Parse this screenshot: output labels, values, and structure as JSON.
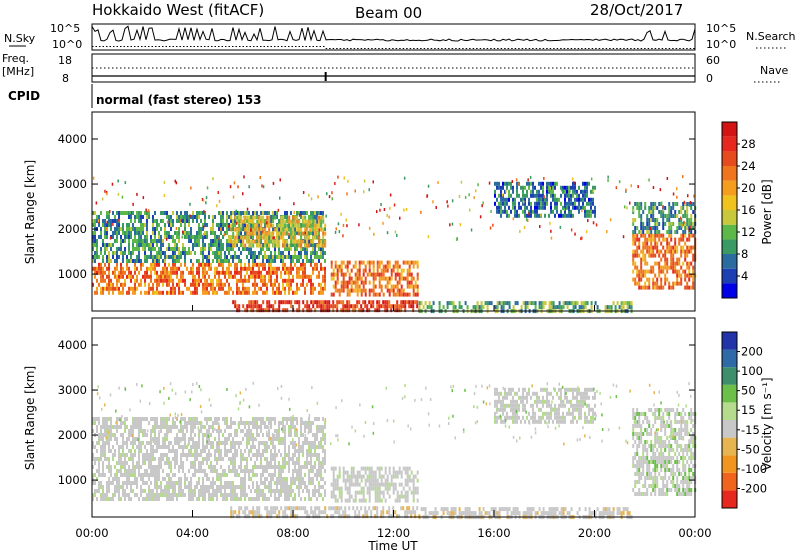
{
  "header": {
    "station": "Hokkaido West (fitACF)",
    "beam": "Beam 00",
    "date": "28/Oct/2017"
  },
  "status_panels": {
    "nsky_label": "N.Sky",
    "nsearch_label": "N.Search",
    "noise_ticks": [
      "10^5",
      "10^0"
    ],
    "freq_label": "Freq.",
    "freq_unit": "[MHz]",
    "freq_ticks": [
      "18",
      "8"
    ],
    "nave_label": "Nave",
    "nave_ticks": [
      "60",
      "0"
    ],
    "cpid_label": "CPID",
    "cpid_text": "normal (fast stereo) 153"
  },
  "colorbars": {
    "power": {
      "label": "Power [dB]",
      "ticks": [
        "4",
        "8",
        "12",
        "16",
        "20",
        "24",
        "28"
      ],
      "colors": [
        "#0000e6",
        "#1c3fb4",
        "#2b6ca0",
        "#3a9a64",
        "#5db84a",
        "#c8c83c",
        "#f0c21e",
        "#f59d1e",
        "#f0761e",
        "#e64b1e",
        "#e6281e",
        "#d21414"
      ]
    },
    "velocity": {
      "label": "Velocity [m s⁻¹]",
      "ticks": [
        "200",
        "100",
        "50",
        "15",
        "-15",
        "-50",
        "-100",
        "-200"
      ],
      "colors": [
        "#2333a8",
        "#2f6aa8",
        "#3c8f6a",
        "#6cc04a",
        "#b4dc8c",
        "#c8c8c8",
        "#e6b450",
        "#f0961e",
        "#f0641e",
        "#e6281e"
      ]
    }
  },
  "axes": {
    "ylabel": "Slant Range [km]",
    "yticks": [
      "1000",
      "2000",
      "3000",
      "4000"
    ],
    "xticks": [
      "00:00",
      "04:00",
      "08:00",
      "12:00",
      "16:00",
      "20:00",
      "00:00"
    ],
    "xlabel": "Time UT"
  },
  "chart_data": [
    {
      "type": "heatmap",
      "panel": "power",
      "x": {
        "unit": "hours UT",
        "range": [
          0,
          24
        ]
      },
      "y": {
        "unit": "km",
        "range": [
          180,
          4600
        ]
      },
      "colorbar": {
        "label": "Power [dB]",
        "range": [
          0,
          30
        ]
      },
      "regions": [
        {
          "t": [
            0,
            9.3
          ],
          "r": [
            600,
            1250
          ],
          "level": 22
        },
        {
          "t": [
            0,
            9.3
          ],
          "r": [
            1250,
            2400
          ],
          "level": 8
        },
        {
          "t": [
            5.5,
            9.3
          ],
          "r": [
            1600,
            2300
          ],
          "level": 16
        },
        {
          "t": [
            9.5,
            13
          ],
          "r": [
            550,
            1300
          ],
          "level": 22
        },
        {
          "t": [
            5.5,
            13
          ],
          "r": [
            200,
            420
          ],
          "level": 26
        },
        {
          "t": [
            13,
            21.5
          ],
          "r": [
            200,
            400
          ],
          "level": 10
        },
        {
          "t": [
            16,
            20
          ],
          "r": [
            2300,
            3050
          ],
          "level": 6
        },
        {
          "t": [
            21.5,
            24
          ],
          "r": [
            700,
            1900
          ],
          "level": 22
        },
        {
          "t": [
            21.5,
            24
          ],
          "r": [
            1900,
            2600
          ],
          "level": 8
        }
      ]
    },
    {
      "type": "heatmap",
      "panel": "velocity",
      "x": {
        "unit": "hours UT",
        "range": [
          0,
          24
        ]
      },
      "y": {
        "unit": "km",
        "range": [
          180,
          4600
        ]
      },
      "colorbar": {
        "label": "Velocity [m s⁻¹]",
        "range": [
          -200,
          200
        ]
      },
      "regions": [
        {
          "t": [
            0,
            9.3
          ],
          "r": [
            550,
            2400
          ],
          "level": 0
        },
        {
          "t": [
            9.5,
            13
          ],
          "r": [
            550,
            1300
          ],
          "level": 0
        },
        {
          "t": [
            5.5,
            13
          ],
          "r": [
            200,
            420
          ],
          "level": -40
        },
        {
          "t": [
            13,
            21.5
          ],
          "r": [
            200,
            400
          ],
          "level": -60
        },
        {
          "t": [
            16,
            20
          ],
          "r": [
            2300,
            3050
          ],
          "level": 0
        },
        {
          "t": [
            21.5,
            24
          ],
          "r": [
            700,
            2600
          ],
          "level": 40
        }
      ]
    }
  ]
}
